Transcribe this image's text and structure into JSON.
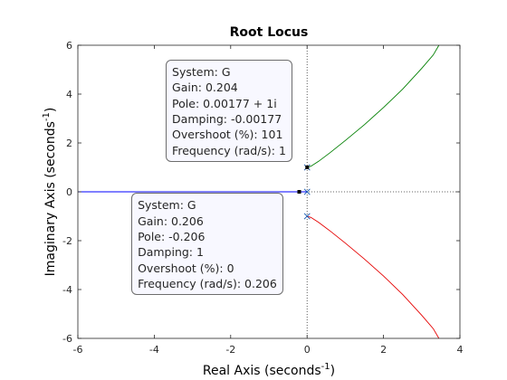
{
  "chart_data": {
    "type": "line",
    "title": "Root Locus",
    "xlabel": "Real Axis (seconds",
    "xlabel_sup": "-1",
    "xlabel_close": ")",
    "ylabel": "Imaginary Axis (seconds",
    "ylabel_sup": "-1",
    "ylabel_close": ")",
    "xlim": [
      -6,
      4
    ],
    "ylim": [
      -6,
      6
    ],
    "xticks": [
      -6,
      -4,
      -2,
      0,
      2,
      4
    ],
    "yticks": [
      -6,
      -4,
      -2,
      0,
      2,
      4,
      6
    ],
    "grid": false,
    "reference_lines": {
      "real_axis": 0,
      "imag_axis": 0,
      "style": "dotted"
    },
    "series": [
      {
        "color": "#0000ff",
        "points": [
          [
            -6.0,
            0
          ],
          [
            -4.5,
            0
          ],
          [
            -3.0,
            0
          ],
          [
            -2.0,
            0
          ],
          [
            -1.2,
            0
          ],
          [
            -0.8,
            0
          ],
          [
            -0.5,
            0
          ],
          [
            -0.35,
            0
          ],
          [
            -0.206,
            0
          ],
          [
            -0.1,
            0
          ],
          [
            0,
            0
          ]
        ]
      },
      {
        "color": "#007f00",
        "points": [
          [
            0,
            1
          ],
          [
            0.1,
            1.05
          ],
          [
            0.3,
            1.25
          ],
          [
            0.6,
            1.6
          ],
          [
            1.0,
            2.1
          ],
          [
            1.5,
            2.75
          ],
          [
            2.0,
            3.45
          ],
          [
            2.5,
            4.2
          ],
          [
            3.0,
            5.05
          ],
          [
            3.3,
            5.6
          ],
          [
            3.45,
            6.0
          ]
        ]
      },
      {
        "color": "#e50000",
        "points": [
          [
            0,
            -1
          ],
          [
            0.1,
            -1.05
          ],
          [
            0.3,
            -1.25
          ],
          [
            0.6,
            -1.6
          ],
          [
            1.0,
            -2.1
          ],
          [
            1.5,
            -2.75
          ],
          [
            2.0,
            -3.45
          ],
          [
            2.5,
            -4.2
          ],
          [
            3.0,
            -5.05
          ],
          [
            3.3,
            -5.6
          ],
          [
            3.45,
            -6.0
          ]
        ]
      }
    ],
    "poles": [
      [
        0,
        1
      ],
      [
        0,
        -1
      ],
      [
        0,
        0
      ]
    ],
    "pole_color": "#1f5fb4",
    "datatips": [
      {
        "marker": [
          0.00177,
          1.0
        ],
        "corner": "bottom-right",
        "anchor": [
          -3.7,
          5.4
        ],
        "lines": [
          "System: G",
          "Gain: 0.204",
          "Pole: 0.00177 + 1i",
          "Damping: -0.00177",
          "Overshoot (%): 101",
          "Frequency (rad/s): 1"
        ]
      },
      {
        "marker": [
          -0.206,
          0.0
        ],
        "corner": "top-right",
        "anchor": [
          -4.6,
          -0.05
        ],
        "lines": [
          "System: G",
          "Gain: 0.206",
          "Pole: -0.206",
          "Damping: 1",
          "Overshoot (%): 0",
          "Frequency (rad/s): 0.206"
        ]
      }
    ]
  }
}
